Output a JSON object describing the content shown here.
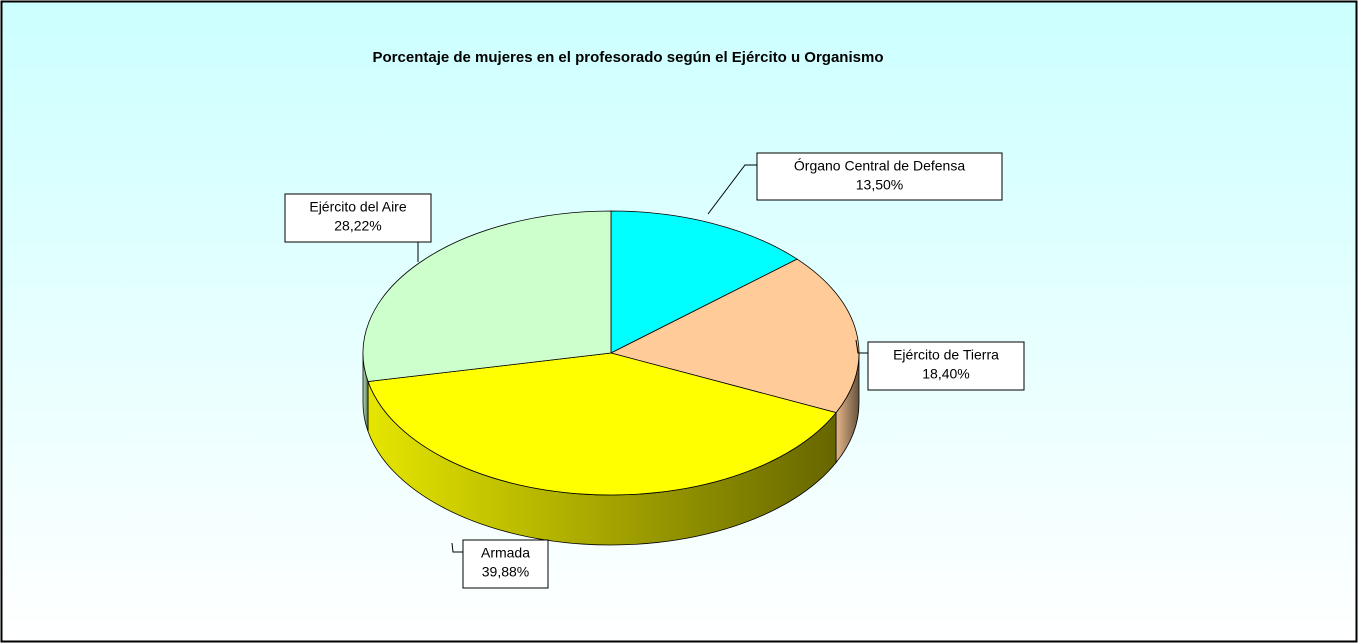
{
  "chart_data": {
    "type": "pie",
    "title": "Porcentaje de mujeres en el profesorado según el Ejército u Organismo",
    "categories": [
      "Órgano Central de Defensa",
      "Ejército de Tierra",
      "Armada",
      "Ejército del Aire"
    ],
    "values": [
      13.5,
      18.4,
      39.88,
      28.22
    ],
    "value_labels": [
      "13,50%",
      "18,40%",
      "39,88%",
      "28,22%"
    ],
    "colors": [
      "#00ffff",
      "#ffcc99",
      "#ffff00",
      "#ccffcc"
    ]
  }
}
